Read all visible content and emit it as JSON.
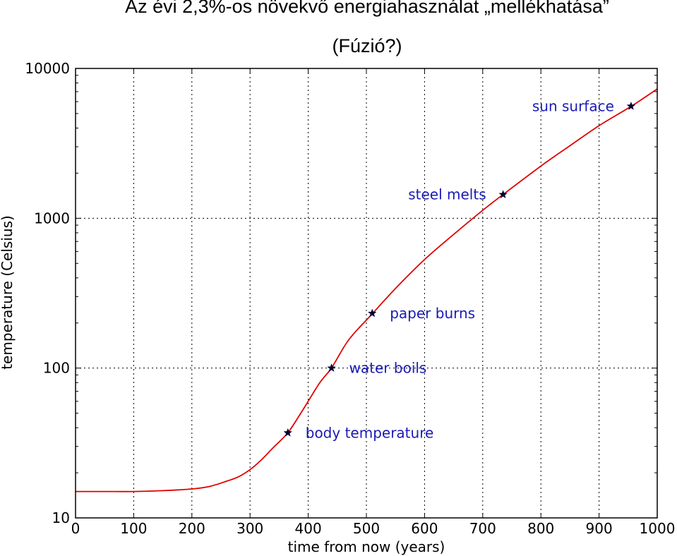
{
  "chart_data": {
    "type": "line",
    "title": "Az évi 2,3%-os növekvő energiahasználat „mellékhatása”",
    "subtitle": "(Fúzió?)",
    "xlabel": "time from now (years)",
    "ylabel": "temperature (Celsius)",
    "xlim": [
      0,
      1000
    ],
    "ylim": [
      10,
      10000
    ],
    "yscale": "log",
    "grid": true,
    "x_ticks": [
      "0",
      "100",
      "200",
      "300",
      "400",
      "500",
      "600",
      "700",
      "800",
      "900",
      "1000"
    ],
    "y_ticks": [
      "10",
      "100",
      "1000",
      "10000"
    ],
    "series": [
      {
        "color": "#e00000",
        "x": [
          0,
          50,
          100,
          150,
          200,
          230,
          260,
          280,
          300,
          320,
          340,
          365,
          390,
          420,
          440,
          470,
          510,
          550,
          600,
          650,
          700,
          735,
          800,
          850,
          900,
          955,
          1000
        ],
        "y": [
          15,
          15,
          15,
          15.2,
          15.6,
          16.2,
          17.6,
          18.8,
          21,
          24.5,
          29.5,
          37,
          52,
          80,
          100,
          155,
          230,
          340,
          530,
          780,
          1130,
          1440,
          2230,
          3050,
          4150,
          5580,
          7300
        ]
      }
    ],
    "annotations": [
      {
        "label": "body temperature",
        "x": 365,
        "y": 37
      },
      {
        "label": "water boils",
        "x": 440,
        "y": 100
      },
      {
        "label": "paper burns",
        "x": 510,
        "y": 232
      },
      {
        "label": "steel melts",
        "x": 735,
        "y": 1440
      },
      {
        "label": "sun surface",
        "x": 955,
        "y": 5600
      }
    ],
    "colors": {
      "line": "#e00000",
      "annotation_text": "#1a1ab4",
      "marker": "#000033"
    }
  }
}
